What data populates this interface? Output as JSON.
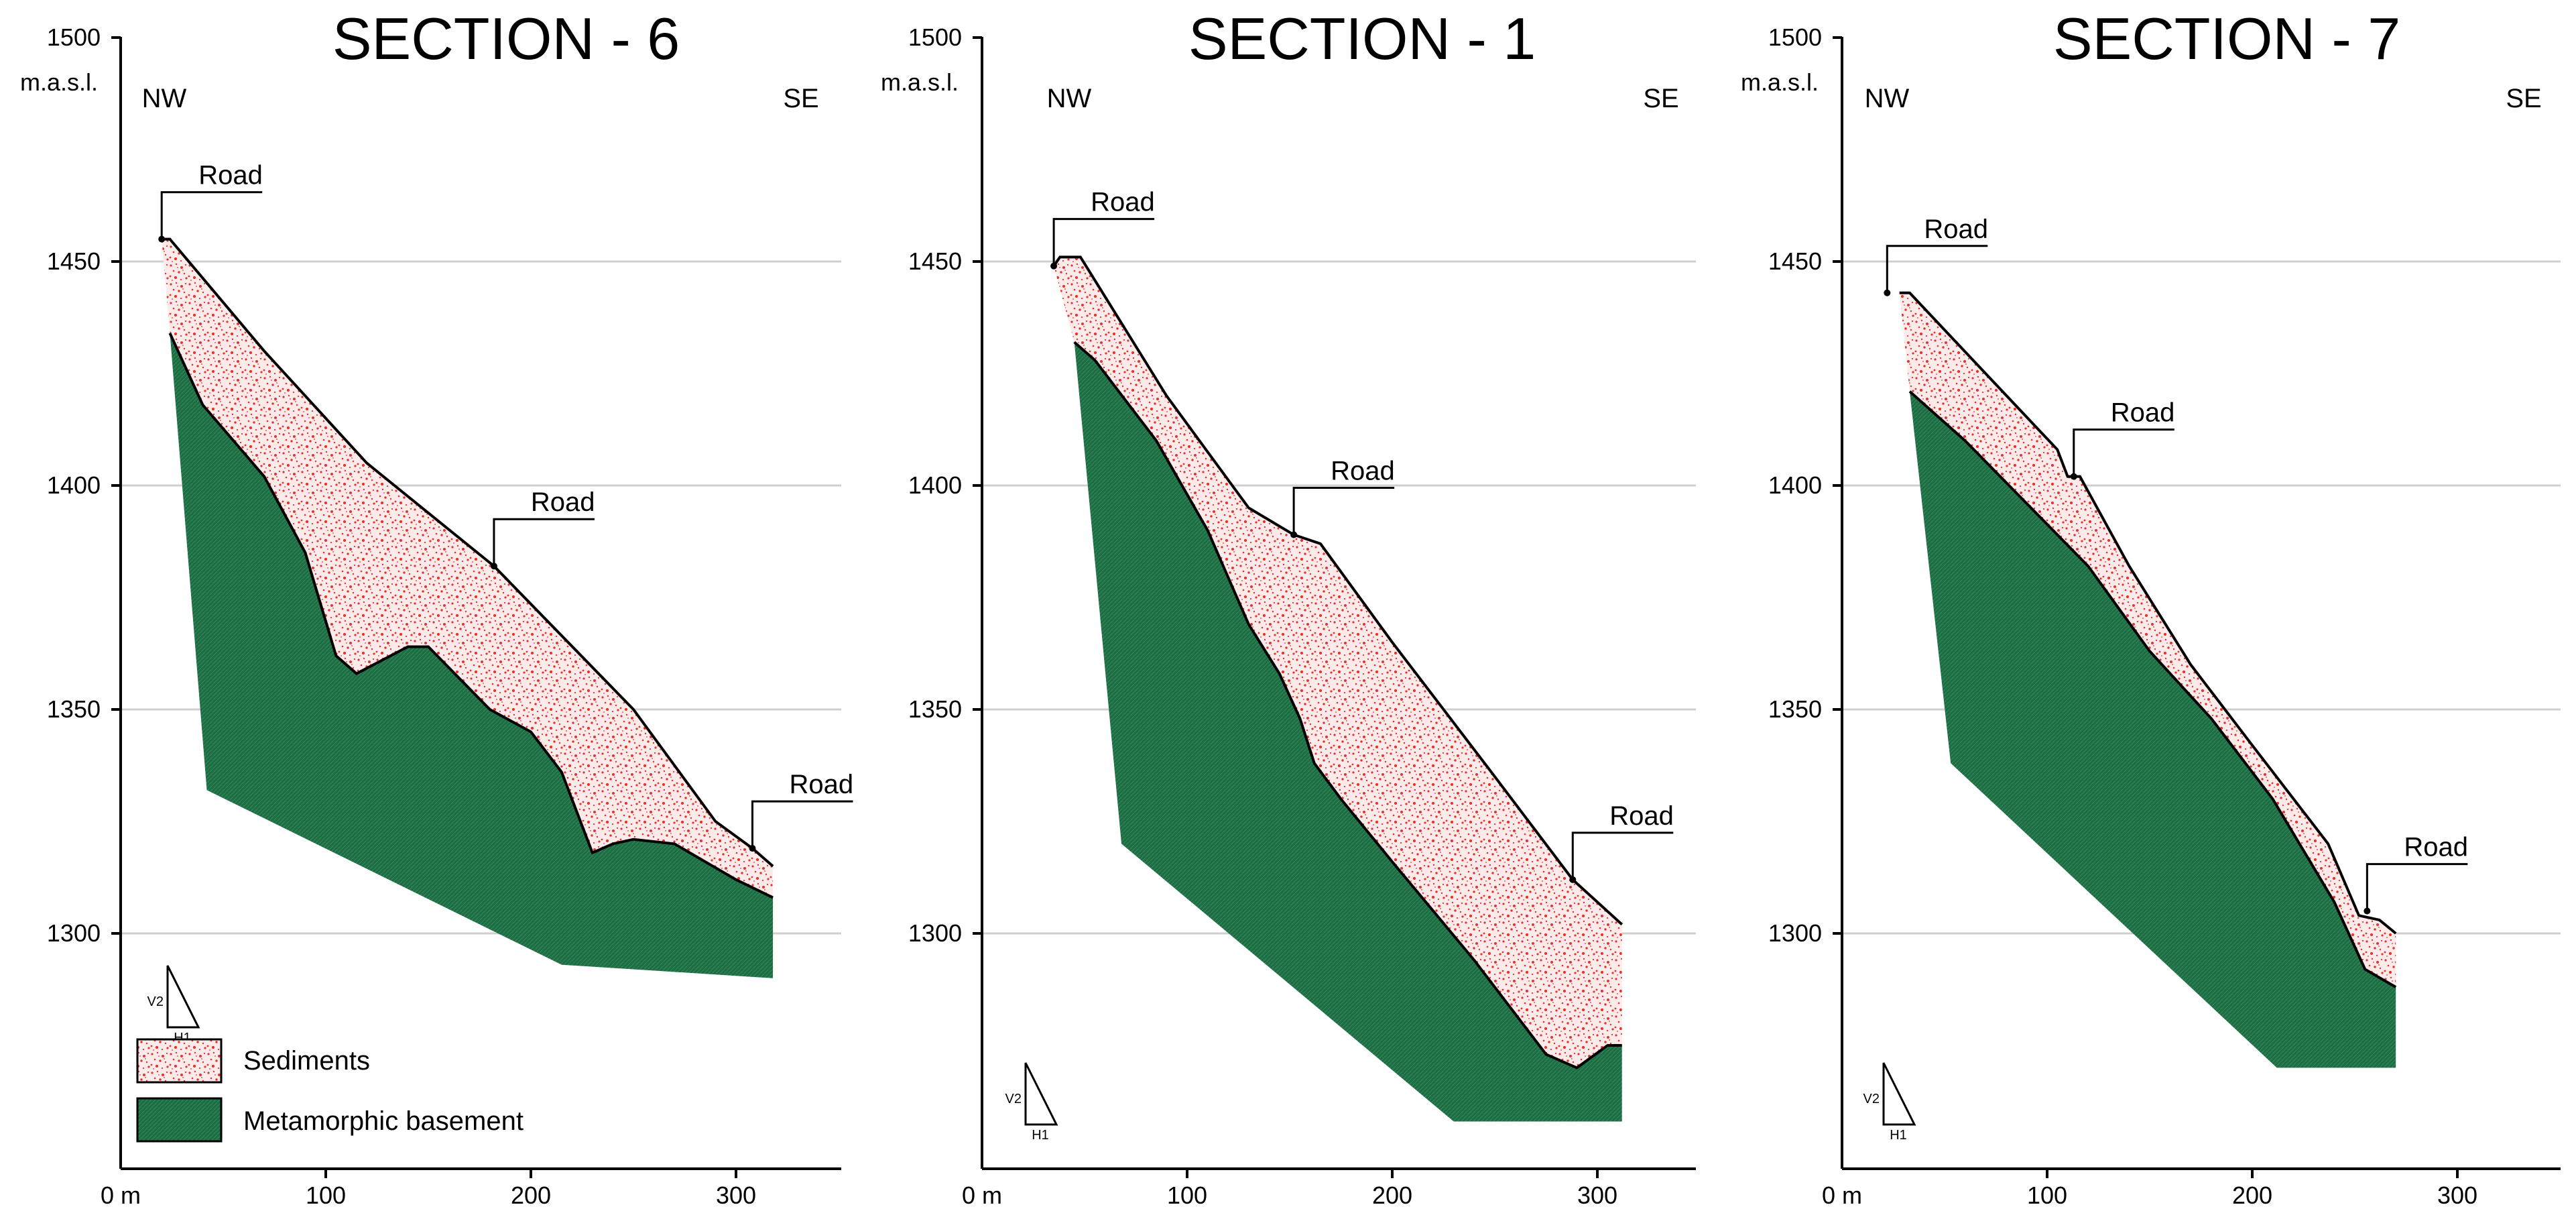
{
  "colors": {
    "sediment": "#e8332b",
    "sediment_bg": "#fdeaea",
    "basement": "#1f6b43",
    "basement_line": "#2e8a58",
    "gridline": "#cfcfcf"
  },
  "shared": {
    "ylabel": "m.a.s.l.",
    "y_ticks": [
      1500,
      1450,
      1400,
      1350,
      1300
    ],
    "x_ticks": [
      100,
      200,
      300
    ],
    "x_origin_label": "0 m",
    "dir_left": "NW",
    "dir_right": "SE",
    "road_label": "Road",
    "scale_v": "V2",
    "scale_h": "H1"
  },
  "legend": {
    "sediments": "Sediments",
    "basement": "Metamorphic basement"
  },
  "chart_data": [
    {
      "type": "geologic-cross-section",
      "title": "SECTION - 6",
      "xlabel": "m",
      "ylabel": "m.a.s.l.",
      "xlim": [
        0,
        355
      ],
      "ylim": [
        1250,
        1500
      ],
      "grid": true,
      "roads": [
        [
          20,
          1455
        ],
        [
          182,
          1382
        ],
        [
          308,
          1319
        ]
      ],
      "surface": [
        [
          20,
          1455
        ],
        [
          24,
          1455
        ],
        [
          70,
          1430
        ],
        [
          120,
          1405
        ],
        [
          182,
          1382
        ],
        [
          250,
          1350
        ],
        [
          290,
          1325
        ],
        [
          308,
          1319
        ],
        [
          318,
          1315
        ]
      ],
      "contact": [
        [
          24,
          1434
        ],
        [
          40,
          1418
        ],
        [
          70,
          1402
        ],
        [
          90,
          1385
        ],
        [
          105,
          1362
        ],
        [
          115,
          1358
        ],
        [
          140,
          1364
        ],
        [
          150,
          1364
        ],
        [
          180,
          1350
        ],
        [
          200,
          1345
        ],
        [
          215,
          1336
        ],
        [
          230,
          1318
        ],
        [
          240,
          1320
        ],
        [
          250,
          1321
        ],
        [
          270,
          1320
        ],
        [
          300,
          1312
        ],
        [
          318,
          1308
        ]
      ],
      "base": [
        [
          318,
          1290
        ],
        [
          250,
          1292
        ],
        [
          215,
          1293
        ],
        [
          42,
          1332
        ],
        [
          24,
          1434
        ]
      ]
    },
    {
      "type": "geologic-cross-section",
      "title": "SECTION - 1",
      "xlabel": "m",
      "ylabel": "m.a.s.l.",
      "xlim": [
        0,
        355
      ],
      "ylim": [
        1250,
        1500
      ],
      "grid": true,
      "roads": [
        [
          35,
          1449
        ],
        [
          152,
          1389
        ],
        [
          288,
          1312
        ]
      ],
      "surface": [
        [
          35,
          1449
        ],
        [
          38,
          1451
        ],
        [
          48,
          1451
        ],
        [
          90,
          1420
        ],
        [
          130,
          1395
        ],
        [
          152,
          1389
        ],
        [
          165,
          1387
        ],
        [
          200,
          1365
        ],
        [
          250,
          1335
        ],
        [
          288,
          1312
        ],
        [
          312,
          1302
        ]
      ],
      "contact": [
        [
          45,
          1432
        ],
        [
          55,
          1428
        ],
        [
          85,
          1410
        ],
        [
          110,
          1390
        ],
        [
          130,
          1369
        ],
        [
          145,
          1358
        ],
        [
          155,
          1348
        ],
        [
          162,
          1338
        ],
        [
          175,
          1330
        ],
        [
          200,
          1316
        ],
        [
          240,
          1294
        ],
        [
          260,
          1282
        ],
        [
          275,
          1273
        ],
        [
          290,
          1270
        ],
        [
          305,
          1275
        ],
        [
          312,
          1275
        ]
      ],
      "base": [
        [
          312,
          1258
        ],
        [
          230,
          1258
        ],
        [
          68,
          1320
        ],
        [
          45,
          1432
        ]
      ]
    },
    {
      "type": "geologic-cross-section",
      "title": "SECTION - 7",
      "xlabel": "m",
      "ylabel": "m.a.s.l.",
      "xlim": [
        0,
        355
      ],
      "ylim": [
        1250,
        1500
      ],
      "grid": true,
      "roads": [
        [
          22,
          1443
        ],
        [
          113,
          1402
        ],
        [
          256,
          1305
        ]
      ],
      "surface": [
        [
          28,
          1443
        ],
        [
          33,
          1443
        ],
        [
          70,
          1425
        ],
        [
          105,
          1408
        ],
        [
          110,
          1402
        ],
        [
          116,
          1402
        ],
        [
          140,
          1382
        ],
        [
          170,
          1360
        ],
        [
          200,
          1342
        ],
        [
          237,
          1320
        ],
        [
          252,
          1304
        ],
        [
          262,
          1303
        ],
        [
          270,
          1300
        ]
      ],
      "contact": [
        [
          33,
          1421
        ],
        [
          60,
          1410
        ],
        [
          90,
          1396
        ],
        [
          120,
          1382
        ],
        [
          150,
          1363
        ],
        [
          180,
          1348
        ],
        [
          210,
          1330
        ],
        [
          240,
          1307
        ],
        [
          255,
          1292
        ],
        [
          270,
          1288
        ]
      ],
      "base": [
        [
          270,
          1270
        ],
        [
          212,
          1270
        ],
        [
          53,
          1338
        ],
        [
          33,
          1421
        ]
      ]
    }
  ]
}
